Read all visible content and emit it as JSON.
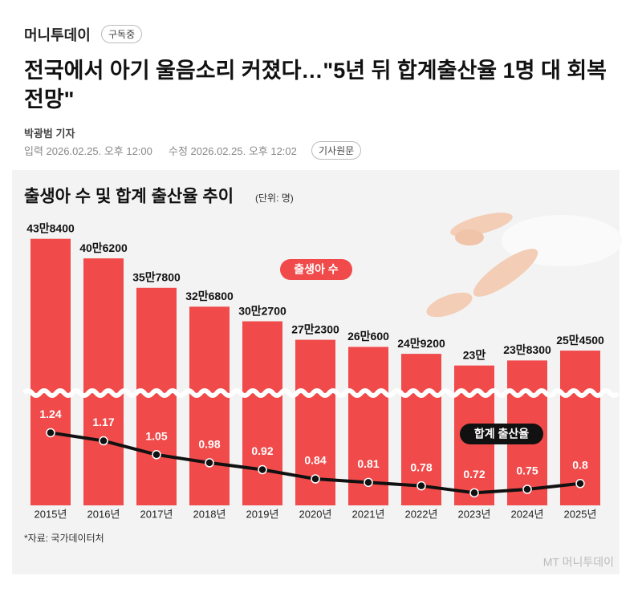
{
  "publisher": "머니투데이",
  "subscribe": "구독중",
  "headline": "전국에서 아기 울음소리 커졌다…\"5년 뒤 합계출산율 1명 대 회복 전망\"",
  "reporter": "박광범 기자",
  "published": "입력 2026.02.25. 오후 12:00",
  "modified": "수정 2026.02.25. 오후 12:02",
  "original_button": "기사원문",
  "chart_data": {
    "type": "bar_line",
    "title": "출생아 수 및 합계 출산율 추이",
    "unit": "(단위: 명)",
    "categories": [
      "2015년",
      "2016년",
      "2017년",
      "2018년",
      "2019년",
      "2020년",
      "2021년",
      "2022년",
      "2023년",
      "2024년",
      "2025년"
    ],
    "series": [
      {
        "name": "출생아 수",
        "color": "#f04a4a",
        "values": [
          438400,
          406200,
          357800,
          326800,
          302700,
          272300,
          260600,
          249200,
          230000,
          238300,
          254500
        ],
        "value_labels": [
          "43만8400",
          "40만6200",
          "35만7800",
          "32만6800",
          "30만2700",
          "27만2300",
          "26만600",
          "24만9200",
          "23만",
          "23만8300",
          "25만4500"
        ]
      },
      {
        "name": "합계 출산율",
        "color": "#111111",
        "axis": "y2",
        "values": [
          1.24,
          1.17,
          1.05,
          0.98,
          0.92,
          0.84,
          0.81,
          0.78,
          0.72,
          0.75,
          0.8
        ]
      }
    ],
    "ylim": [
      0,
      500000
    ],
    "y2lim": [
      0,
      1.5
    ],
    "source": "*자료: 국가데이터처",
    "watermark": "MT 머니투데이"
  }
}
